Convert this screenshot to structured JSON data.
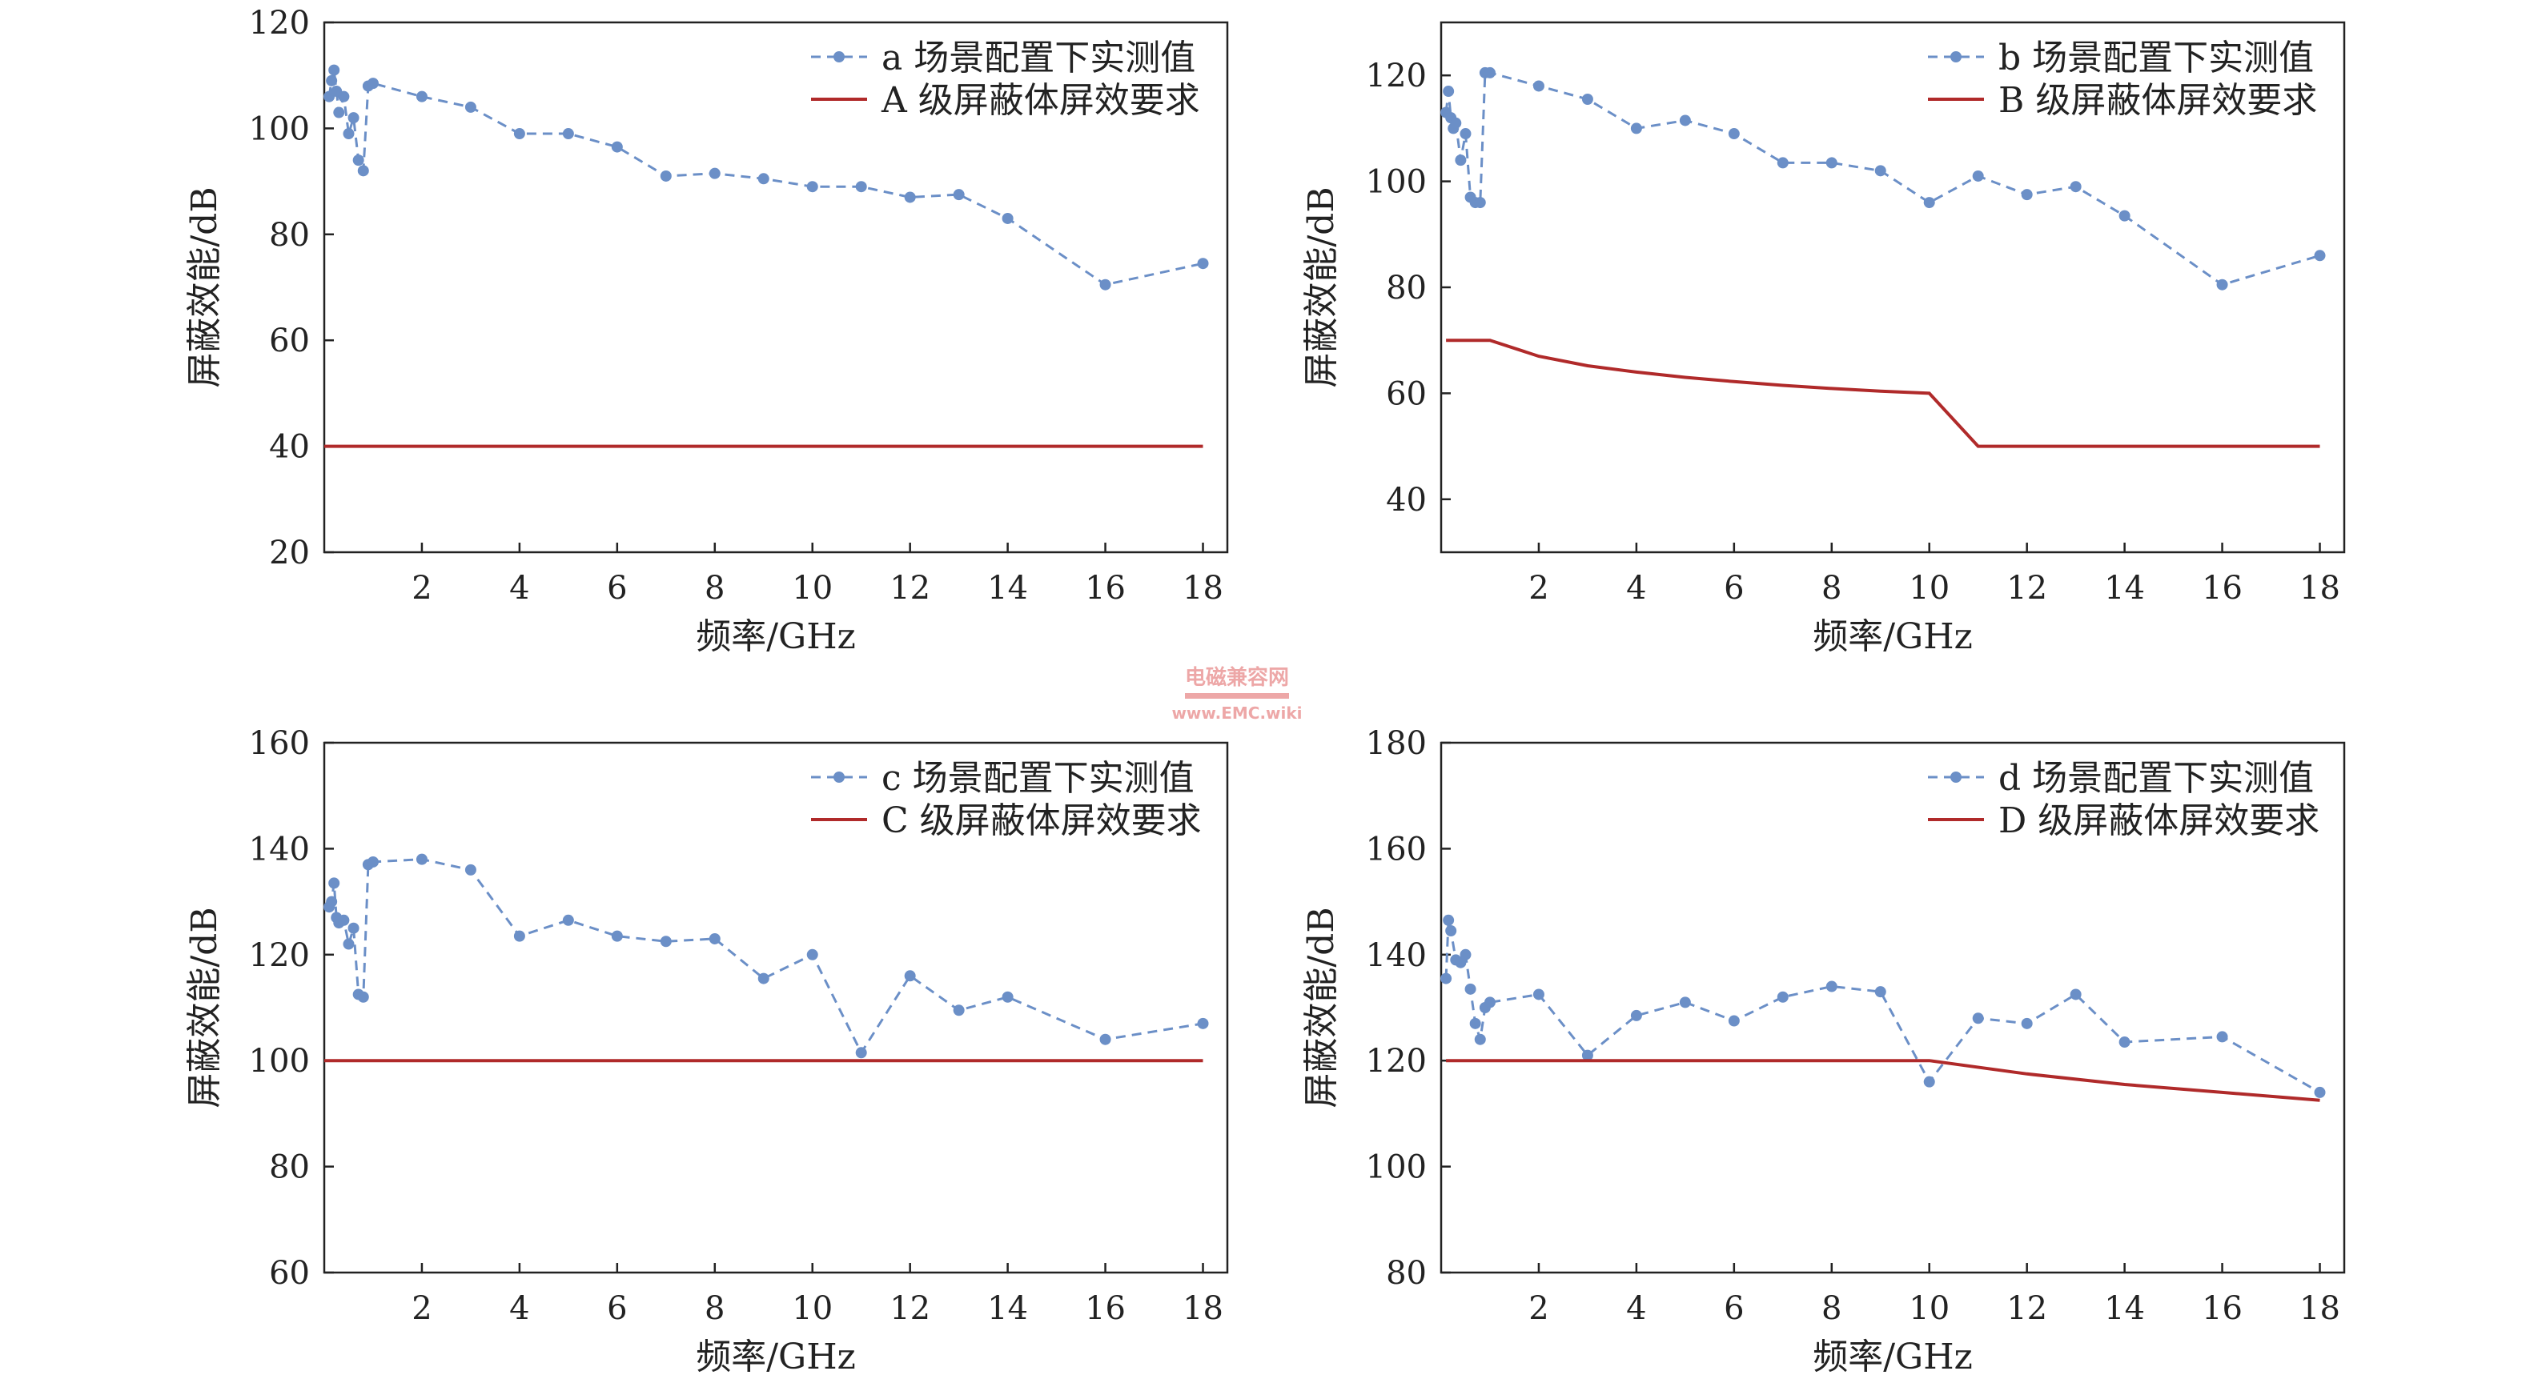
{
  "colors": {
    "measured": "#6b8fc7",
    "requirement": "#b02a2a",
    "axis": "#222222",
    "watermark": "#e06060"
  },
  "watermark": {
    "line1": "电磁兼容网",
    "line2": "www.EMC.wiki"
  },
  "chart_data": [
    {
      "id": "a",
      "type": "line",
      "xlabel": "频率/GHz",
      "ylabel": "屏蔽效能/dB",
      "xlim": [
        0,
        18.5
      ],
      "ylim": [
        20,
        120
      ],
      "xticks": [
        2,
        4,
        6,
        8,
        10,
        12,
        14,
        16,
        18
      ],
      "yticks": [
        20,
        40,
        60,
        80,
        100,
        120
      ],
      "legend_position": "top-right",
      "series": [
        {
          "name": "a 场景配置下实测值",
          "style": "dashed-markers",
          "x": [
            0.1,
            0.15,
            0.2,
            0.25,
            0.3,
            0.4,
            0.5,
            0.6,
            0.7,
            0.8,
            0.9,
            1.0,
            2,
            3,
            4,
            5,
            6,
            7,
            8,
            9,
            10,
            11,
            12,
            13,
            14,
            16,
            18
          ],
          "y": [
            106,
            109,
            111,
            107,
            103,
            106,
            99,
            102,
            94,
            92,
            108,
            108.5,
            106,
            104,
            99,
            99,
            96.5,
            91,
            91.5,
            90.5,
            89,
            89,
            87,
            87.5,
            83,
            70.5,
            74.5
          ]
        },
        {
          "name": "A 级屏蔽体屏效要求",
          "style": "solid",
          "x": [
            0,
            18
          ],
          "y": [
            40,
            40
          ]
        }
      ]
    },
    {
      "id": "b",
      "type": "line",
      "xlabel": "频率/GHz",
      "ylabel": "屏蔽效能/dB",
      "xlim": [
        0,
        18.5
      ],
      "ylim": [
        30,
        130
      ],
      "xticks": [
        2,
        4,
        6,
        8,
        10,
        12,
        14,
        16,
        18
      ],
      "yticks": [
        40,
        60,
        80,
        100,
        120
      ],
      "legend_position": "top-right",
      "series": [
        {
          "name": "b 场景配置下实测值",
          "style": "dashed-markers",
          "x": [
            0.1,
            0.15,
            0.2,
            0.25,
            0.3,
            0.4,
            0.5,
            0.6,
            0.7,
            0.8,
            0.9,
            1.0,
            2,
            3,
            4,
            5,
            6,
            7,
            8,
            9,
            10,
            11,
            12,
            13,
            14,
            16,
            18
          ],
          "y": [
            113,
            117,
            112,
            110,
            111,
            104,
            109,
            97,
            96,
            96,
            120.5,
            120.5,
            118,
            115.5,
            110,
            111.5,
            109,
            103.5,
            103.5,
            102,
            96,
            101,
            97.5,
            99,
            93.5,
            80.5,
            86
          ]
        },
        {
          "name": "B 级屏蔽体屏效要求",
          "style": "solid",
          "x": [
            0.1,
            1,
            2,
            3,
            4,
            5,
            6,
            7,
            8,
            9,
            10,
            11,
            12,
            14,
            16,
            18
          ],
          "y": [
            70,
            70,
            67,
            65.2,
            64,
            63,
            62.2,
            61.5,
            60.9,
            60.4,
            60,
            50,
            50,
            50,
            50,
            50
          ]
        }
      ]
    },
    {
      "id": "c",
      "type": "line",
      "xlabel": "频率/GHz",
      "ylabel": "屏蔽效能/dB",
      "xlim": [
        0,
        18.5
      ],
      "ylim": [
        60,
        160
      ],
      "xticks": [
        2,
        4,
        6,
        8,
        10,
        12,
        14,
        16,
        18
      ],
      "yticks": [
        60,
        80,
        100,
        120,
        140,
        160
      ],
      "legend_position": "top-right",
      "series": [
        {
          "name": "c 场景配置下实测值",
          "style": "dashed-markers",
          "x": [
            0.1,
            0.15,
            0.2,
            0.25,
            0.3,
            0.4,
            0.5,
            0.6,
            0.7,
            0.8,
            0.9,
            1.0,
            2,
            3,
            4,
            5,
            6,
            7,
            8,
            9,
            10,
            11,
            12,
            13,
            14,
            16,
            18
          ],
          "y": [
            129,
            130,
            133.5,
            127,
            126,
            126.5,
            122,
            125,
            112.5,
            112,
            137,
            137.5,
            138,
            136,
            123.5,
            126.5,
            123.5,
            122.5,
            123,
            115.5,
            120,
            101.5,
            116,
            109.5,
            112,
            104,
            107
          ]
        },
        {
          "name": "C 级屏蔽体屏效要求",
          "style": "solid",
          "x": [
            0,
            18
          ],
          "y": [
            100,
            100
          ]
        }
      ]
    },
    {
      "id": "d",
      "type": "line",
      "xlabel": "频率/GHz",
      "ylabel": "屏蔽效能/dB",
      "xlim": [
        0,
        18.5
      ],
      "ylim": [
        80,
        180
      ],
      "xticks": [
        2,
        4,
        6,
        8,
        10,
        12,
        14,
        16,
        18
      ],
      "yticks": [
        80,
        100,
        120,
        140,
        160,
        180
      ],
      "legend_position": "top-right",
      "series": [
        {
          "name": "d 场景配置下实测值",
          "style": "dashed-markers",
          "x": [
            0.1,
            0.15,
            0.2,
            0.3,
            0.4,
            0.5,
            0.6,
            0.7,
            0.8,
            0.9,
            1.0,
            2,
            3,
            4,
            5,
            6,
            7,
            8,
            9,
            10,
            11,
            12,
            13,
            14,
            16,
            18
          ],
          "y": [
            135.5,
            146.5,
            144.5,
            139,
            138.5,
            140,
            133.5,
            127,
            124,
            130,
            131,
            132.5,
            121,
            128.5,
            131,
            127.5,
            132,
            134,
            133,
            116,
            128,
            127,
            132.5,
            123.5,
            124.5,
            114
          ]
        },
        {
          "name": "D 级屏蔽体屏效要求",
          "style": "solid",
          "x": [
            0.1,
            10,
            12,
            14,
            16,
            18
          ],
          "y": [
            120,
            120,
            117.5,
            115.5,
            114,
            112.5
          ]
        }
      ]
    }
  ]
}
